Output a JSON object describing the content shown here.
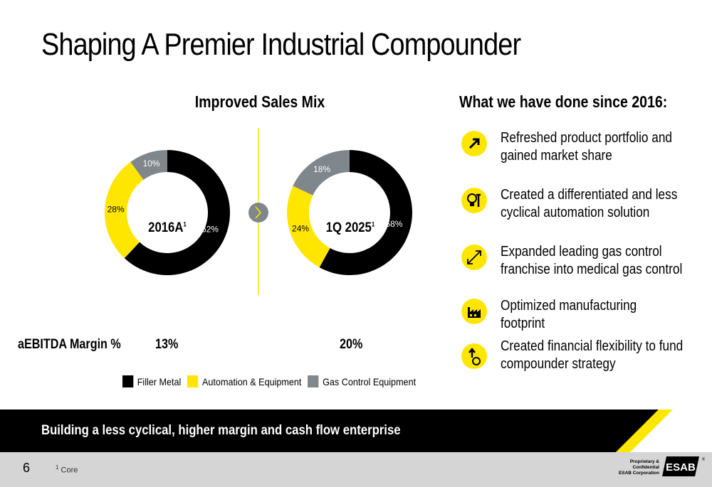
{
  "slide": {
    "title": "Shaping A Premier Industrial Compounder",
    "mix_title": "Improved Sales Mix",
    "done_title": "What we have done since 2016:",
    "page_number": "6",
    "footnote_marker": "1",
    "footnote_text": "Core",
    "tagline": "Building a less cyclical, higher margin and cash flow enterprise",
    "proprietary_line1": "Proprietary & Confidential",
    "proprietary_line2": "ESAB Corporation",
    "logo_text": "ESAB",
    "logo_mark": "®"
  },
  "colors": {
    "filler": "#000000",
    "automation": "#FFE600",
    "gas": "#7F868C",
    "accent": "#FFE600"
  },
  "chart_data": [
    {
      "type": "pie",
      "center_label": "2016A",
      "center_sup": "1",
      "categories": [
        "Filler Metal",
        "Automation & Equipment",
        "Gas Control Equipment"
      ],
      "values": [
        62,
        28,
        10
      ],
      "labels": [
        "62%",
        "28%",
        "10%"
      ]
    },
    {
      "type": "pie",
      "center_label": "1Q 2025",
      "center_sup": "1",
      "categories": [
        "Filler Metal",
        "Automation & Equipment",
        "Gas Control Equipment"
      ],
      "values": [
        58,
        24,
        18
      ],
      "labels": [
        "58%",
        "24%",
        "18%"
      ]
    }
  ],
  "margins": {
    "label": "aEBITDA Margin %",
    "values": [
      "13%",
      "20%"
    ]
  },
  "legend": {
    "items": [
      {
        "label": "Filler Metal"
      },
      {
        "label": "Automation & Equipment"
      },
      {
        "label": "Gas Control Equipment"
      }
    ]
  },
  "achievements": [
    {
      "icon": "arrow-up-right-icon",
      "text": "Refreshed product portfolio and gained market share"
    },
    {
      "icon": "lightbulb-wrench-icon",
      "text": "Created a differentiated and less cyclical automation solution"
    },
    {
      "icon": "expand-arrow-icon",
      "text": "Expanded leading gas control franchise into medical gas control"
    },
    {
      "icon": "factory-icon",
      "text": "Optimized manufacturing footprint"
    },
    {
      "icon": "coin-growth-icon",
      "text": "Created financial flexibility to fund compounder strategy"
    }
  ]
}
